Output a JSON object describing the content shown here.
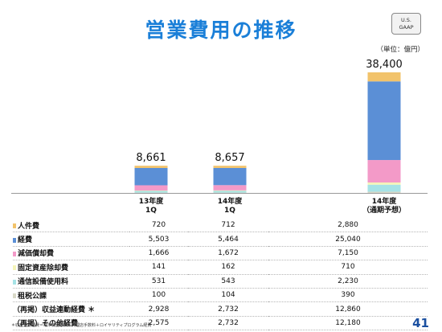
{
  "title": "営業費用の推移",
  "badge": {
    "line1": "U.S.",
    "line2": "GAAP"
  },
  "unit_note": "（単位：億円）",
  "colors": {
    "labor": "#f2c36b",
    "expenses": "#5b8fd6",
    "depreciation": "#f39ac8",
    "retirement": "#f4f4b8",
    "telecom": "#a6e3e6",
    "taxes": "#d9d9c8"
  },
  "chart_data": {
    "type": "bar",
    "stacked": true,
    "categories": [
      "13年度\n1Q",
      "14年度\n1Q",
      "14年度\n（通期予想）"
    ],
    "totals": [
      "8,661",
      "8,657",
      "38,400"
    ],
    "series": [
      {
        "name": "人件費",
        "color": "#f2c36b",
        "values": [
          720,
          712,
          2880
        ]
      },
      {
        "name": "経費",
        "color": "#5b8fd6",
        "values": [
          5503,
          5464,
          25040
        ]
      },
      {
        "name": "減価償却費",
        "color": "#f39ac8",
        "values": [
          1666,
          1672,
          7150
        ]
      },
      {
        "name": "固定資産除却費",
        "color": "#f4f4b8",
        "values": [
          141,
          162,
          710
        ]
      },
      {
        "name": "通信設備使用料",
        "color": "#a6e3e6",
        "values": [
          531,
          543,
          2230
        ]
      },
      {
        "name": "租税公課",
        "color": "#d9d9c8",
        "values": [
          100,
          104,
          390
        ]
      }
    ]
  },
  "table": {
    "rows": [
      {
        "label": "人件費",
        "swatch": "#f2c36b",
        "values": [
          "720",
          "712",
          "2,880"
        ]
      },
      {
        "label": "経費",
        "swatch": "#5b8fd6",
        "values": [
          "5,503",
          "5,464",
          "25,040"
        ]
      },
      {
        "label": "減価償却費",
        "swatch": "#f39ac8",
        "values": [
          "1,666",
          "1,672",
          "7,150"
        ]
      },
      {
        "label": "固定資産除却費",
        "swatch": "#f4f4b8",
        "values": [
          "141",
          "162",
          "710"
        ]
      },
      {
        "label": "通信設備使用料",
        "swatch": "#a6e3e6",
        "values": [
          "531",
          "543",
          "2,230"
        ]
      },
      {
        "label": "租税公課",
        "swatch": "#d9d9c8",
        "values": [
          "100",
          "104",
          "390"
        ]
      },
      {
        "label": "（再掲）収益連動経費 ＊",
        "swatch": "",
        "values": [
          "2,928",
          "2,732",
          "12,860"
        ]
      },
      {
        "label": "（再掲）その他経費",
        "swatch": "",
        "values": [
          "2,575",
          "2,732",
          "12,180"
        ]
      }
    ]
  },
  "footnote": "＊収益連動経費＝端末機器原価＋代理店手数料＋ロイヤリティプログラム経費",
  "page_number": "41"
}
